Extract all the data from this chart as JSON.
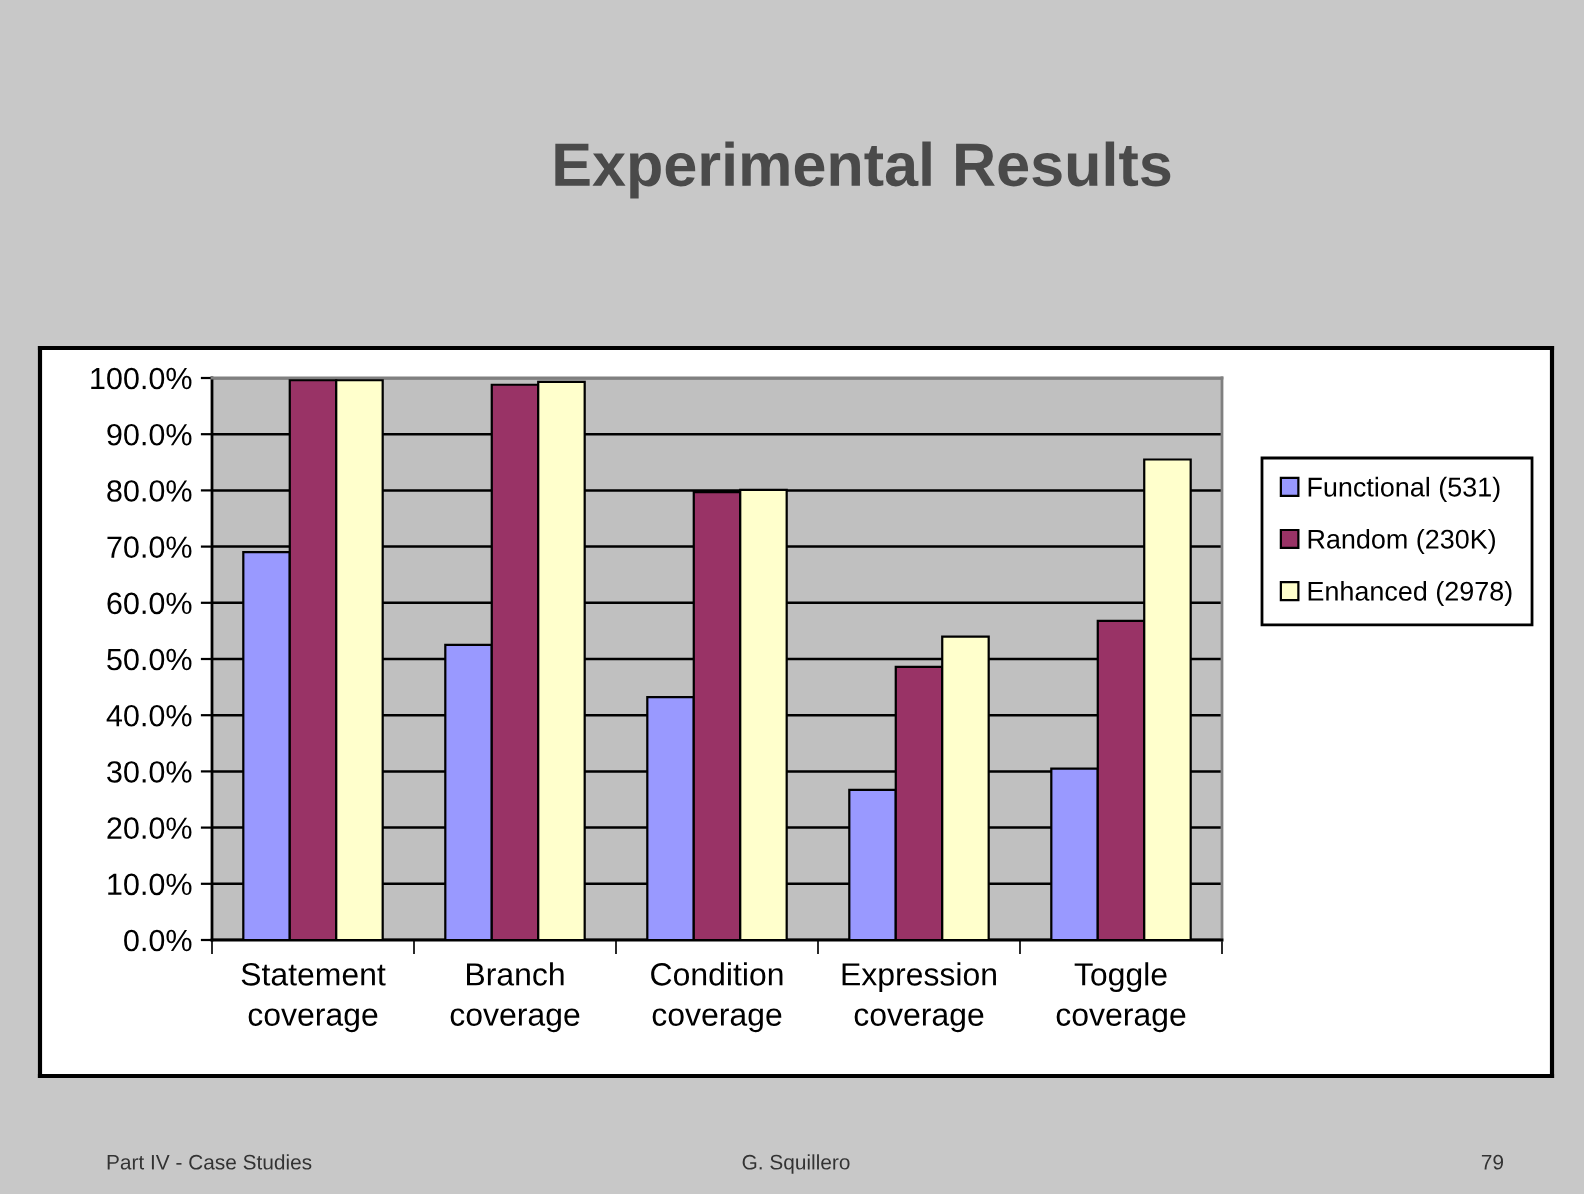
{
  "chart_data": {
    "type": "bar",
    "title": "Experimental Results",
    "categories": [
      "Statement\ncoverage",
      "Branch\ncoverage",
      "Condition\ncoverage",
      "Expression\ncoverage",
      "Toggle\ncoverage"
    ],
    "series": [
      {
        "name": "Functional (531)",
        "color": "#9999ff",
        "values": [
          69.0,
          52.5,
          43.2,
          26.7,
          30.5
        ]
      },
      {
        "name": "Random (230K)",
        "color": "#993366",
        "values": [
          99.6,
          98.8,
          79.7,
          48.6,
          56.8
        ]
      },
      {
        "name": "Enhanced (2978)",
        "color": "#ffffcc",
        "values": [
          99.6,
          99.3,
          80.1,
          54.0,
          85.5
        ]
      }
    ],
    "ylim": [
      0,
      100
    ],
    "yticks": [
      {
        "value": 0,
        "label": "0.0%"
      },
      {
        "value": 10,
        "label": "10.0%"
      },
      {
        "value": 20,
        "label": "20.0%"
      },
      {
        "value": 30,
        "label": "30.0%"
      },
      {
        "value": 40,
        "label": "40.0%"
      },
      {
        "value": 50,
        "label": "50.0%"
      },
      {
        "value": 60,
        "label": "60.0%"
      },
      {
        "value": 70,
        "label": "70.0%"
      },
      {
        "value": 80,
        "label": "80.0%"
      },
      {
        "value": 90,
        "label": "90.0%"
      },
      {
        "value": 100,
        "label": "100.0%"
      }
    ],
    "grid": "y",
    "legend": "right",
    "annotations": [
      "Part IV - Case Studies",
      "G. Squillero",
      "79"
    ]
  }
}
